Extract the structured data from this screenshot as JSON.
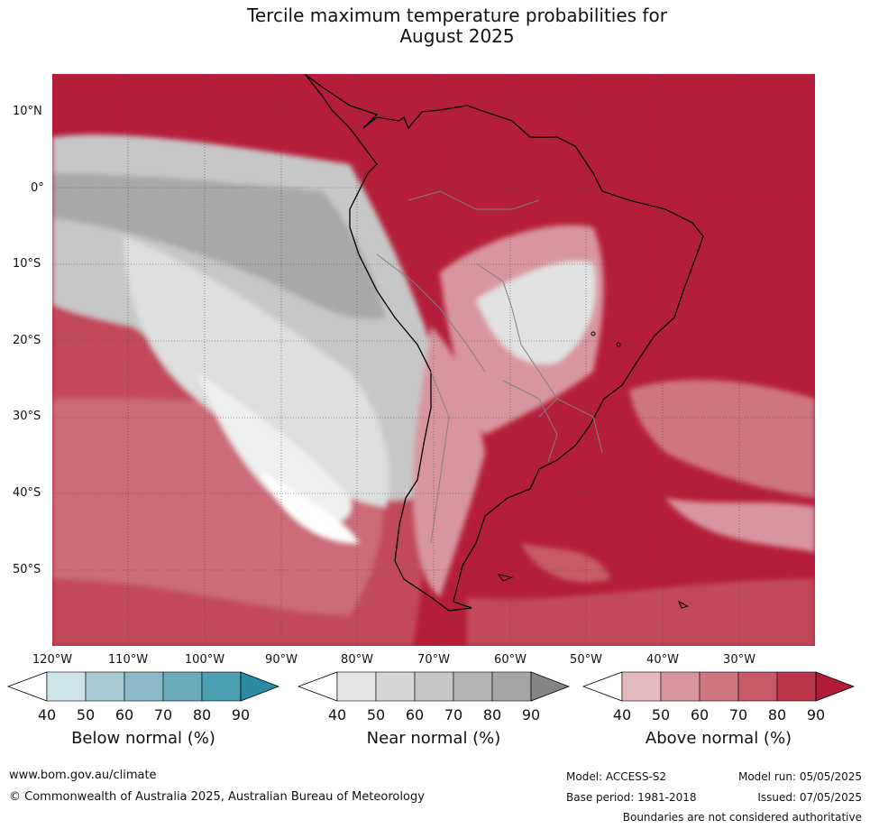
{
  "title_line1": "Tercile maximum temperature probabilities for",
  "title_line2": "August 2025",
  "lat_labels": [
    "10°N",
    "0°",
    "10°S",
    "20°S",
    "30°S",
    "40°S",
    "50°S"
  ],
  "lon_labels": [
    "120°W",
    "110°W",
    "100°W",
    "90°W",
    "80°W",
    "70°W",
    "60°W",
    "50°W",
    "40°W",
    "30°W"
  ],
  "colorbars": [
    {
      "title": "Below normal (%)",
      "ticks": [
        "40",
        "50",
        "60",
        "70",
        "80",
        "90"
      ],
      "colors": [
        "#ffffff",
        "#cde3ea",
        "#a7c9d1",
        "#8bb9c5",
        "#6aabba",
        "#4aa0b2",
        "#2b8ba2"
      ]
    },
    {
      "title": "Near normal (%)",
      "ticks": [
        "40",
        "50",
        "60",
        "70",
        "80",
        "90"
      ],
      "colors": [
        "#ffffff",
        "#e6e6e6",
        "#d6d6d6",
        "#c6c6c6",
        "#b5b5b5",
        "#a5a5a5",
        "#858585"
      ]
    },
    {
      "title": "Above normal (%)",
      "ticks": [
        "40",
        "50",
        "60",
        "70",
        "80",
        "90"
      ],
      "colors": [
        "#ffffff",
        "#e4b9bf",
        "#d8959f",
        "#cf7580",
        "#c75a66",
        "#bd3549",
        "#b01c38"
      ]
    }
  ],
  "footer": {
    "website": "www.bom.gov.au/climate",
    "copyright": "© Commonwealth of Australia 2025, Australian Bureau of Meteorology",
    "model": "Model: ACCESS-S2",
    "base_period": "Base period: 1981-2018",
    "model_run": "Model run: 05/05/2025",
    "issued": "Issued: 07/05/2025",
    "disclaimer": "Boundaries are not considered authoritative"
  }
}
